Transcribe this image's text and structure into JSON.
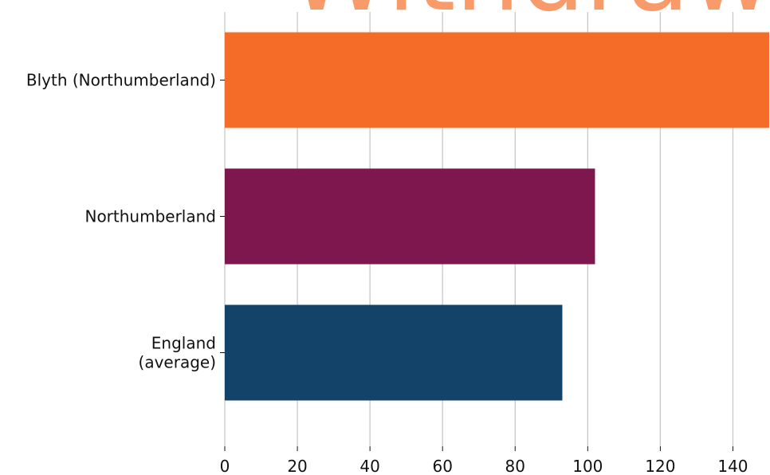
{
  "watermark": {
    "text": "Withdrawn",
    "color": "#F99A6A"
  },
  "chart_data": {
    "type": "bar",
    "orientation": "horizontal",
    "categories": [
      "Blyth (Northumberland)",
      "Northumberland",
      "England\n(average)"
    ],
    "values": [
      150,
      102,
      93
    ],
    "colors": [
      "#F46C27",
      "#7E174D",
      "#134369"
    ],
    "xlim": [
      0,
      150
    ],
    "xticks": [
      0,
      20,
      40,
      60,
      80,
      100,
      120,
      140
    ],
    "grid": "vertical",
    "grid_color": "#C8C8C8"
  }
}
